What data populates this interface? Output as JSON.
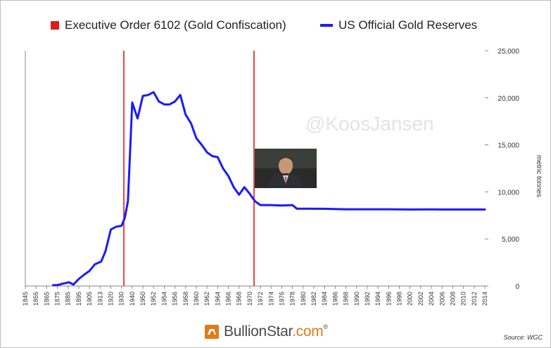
{
  "legend": {
    "order_label": "Executive Order 6102 (Gold Confiscation)",
    "reserves_label": "US Official Gold Reserves"
  },
  "colors": {
    "order_line": "#e0191a",
    "reserves_line": "#1a1aff",
    "axis": "#888888",
    "text": "#333333"
  },
  "watermark": "@KoosJansen",
  "source": "Source: WGC",
  "brand": {
    "name": "BullionStar",
    "suffix": ".com",
    "mark": "®",
    "logo_icon": "bullionstar-logo-icon"
  },
  "inset": {
    "icon": "press-conference-photo"
  },
  "chart_data": {
    "type": "line",
    "title": "",
    "xlabel": "",
    "ylabel": "metric tonnes",
    "ylim": [
      0,
      25000
    ],
    "yticks": [
      0,
      5000,
      10000,
      15000,
      20000,
      25000
    ],
    "ytick_labels": [
      "0",
      "5,000",
      "10,000",
      "15,000",
      "20,000",
      "25,000"
    ],
    "grid": false,
    "legend_position": "top",
    "x_tick_labels": [
      "1845",
      "1855",
      "1865",
      "1875",
      "1885",
      "1895",
      "1905",
      "1913",
      "1920",
      "1930",
      "1940",
      "1950",
      "1952",
      "1954",
      "1956",
      "1958",
      "1960",
      "1962",
      "1964",
      "1966",
      "1968",
      "1970",
      "1972",
      "1974",
      "1976",
      "1978",
      "1980",
      "1982",
      "1984",
      "1986",
      "1988",
      "1990",
      "1992",
      "1994",
      "1996",
      "1998",
      "2000",
      "2002",
      "2004",
      "2006",
      "2008",
      "2010",
      "2012",
      "2014"
    ],
    "vertical_markers": [
      {
        "name": "Executive Order 6102 (Gold Confiscation)",
        "after_tick_index": 9.22
      },
      {
        "name": "",
        "after_tick_index": 21.4
      }
    ],
    "series": [
      {
        "name": "US Official Gold Reserves",
        "points": [
          [
            2.6,
            100
          ],
          [
            3.0,
            100
          ],
          [
            3.5,
            250
          ],
          [
            4.1,
            400
          ],
          [
            4.5,
            150
          ],
          [
            5.0,
            750
          ],
          [
            5.5,
            1200
          ],
          [
            6.0,
            1600
          ],
          [
            6.5,
            2300
          ],
          [
            7.1,
            2600
          ],
          [
            7.5,
            3700
          ],
          [
            8.0,
            6000
          ],
          [
            8.5,
            6300
          ],
          [
            9.0,
            6400
          ],
          [
            9.3,
            7200
          ],
          [
            9.6,
            9000
          ],
          [
            10.0,
            19500
          ],
          [
            10.5,
            17800
          ],
          [
            11.0,
            20200
          ],
          [
            11.5,
            20300
          ],
          [
            12.0,
            20600
          ],
          [
            12.5,
            19600
          ],
          [
            13.0,
            19300
          ],
          [
            13.5,
            19300
          ],
          [
            14.0,
            19600
          ],
          [
            14.5,
            20300
          ],
          [
            15.0,
            18200
          ],
          [
            15.5,
            17300
          ],
          [
            16.0,
            15700
          ],
          [
            16.5,
            15000
          ],
          [
            17.0,
            14200
          ],
          [
            17.5,
            13800
          ],
          [
            18.0,
            13700
          ],
          [
            18.5,
            12500
          ],
          [
            19.0,
            11700
          ],
          [
            19.5,
            10500
          ],
          [
            20.0,
            9700
          ],
          [
            20.5,
            10500
          ],
          [
            21.0,
            9800
          ],
          [
            21.5,
            9000
          ],
          [
            22.0,
            8600
          ],
          [
            23.0,
            8600
          ],
          [
            24.0,
            8550
          ],
          [
            25.0,
            8600
          ],
          [
            25.4,
            8220
          ],
          [
            26.0,
            8220
          ],
          [
            28.0,
            8200
          ],
          [
            30.0,
            8150
          ],
          [
            32.0,
            8150
          ],
          [
            34.0,
            8150
          ],
          [
            36.0,
            8130
          ],
          [
            38.0,
            8140
          ],
          [
            39.0,
            8130
          ],
          [
            41.0,
            8130
          ],
          [
            43.0,
            8130
          ]
        ]
      }
    ]
  }
}
